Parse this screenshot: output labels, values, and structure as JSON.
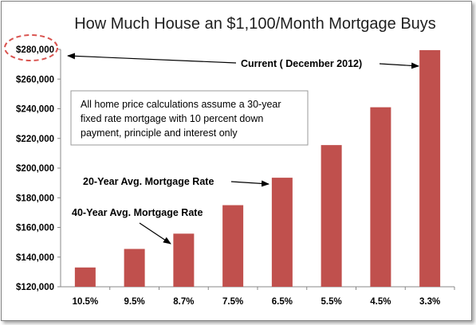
{
  "chart_data": {
    "type": "bar",
    "title": "How Much House an $1,100/Month Mortgage Buys",
    "xlabel": "",
    "ylabel": "",
    "categories": [
      "10.5%",
      "9.5%",
      "8.7%",
      "7.5%",
      "6.5%",
      "5.5%",
      "4.5%",
      "3.3%"
    ],
    "values": [
      133000,
      145500,
      155800,
      175000,
      193500,
      215500,
      241000,
      279500
    ],
    "ylim": [
      120000,
      280000
    ],
    "yticks": [
      120000,
      140000,
      160000,
      180000,
      200000,
      220000,
      240000,
      260000,
      280000
    ],
    "ytick_labels": [
      "$120,000",
      "$140,000",
      "$160,000",
      "$180,000",
      "$200,000",
      "$220,000",
      "$240,000",
      "$260,000",
      "$280,000"
    ],
    "bar_color": "#c0504d",
    "grid": false,
    "annotations": {
      "current": "Current ( December 2012)",
      "rate_20yr": "20-Year Avg. Mortgage Rate",
      "rate_40yr": "40-Year Avg. Mortgage Rate",
      "note_lines": [
        "All home price calculations assume a 30-year",
        "fixed rate mortgage with 10 percent down",
        "payment,  principle and interest only"
      ]
    },
    "highlight_color": "#d9534f"
  }
}
